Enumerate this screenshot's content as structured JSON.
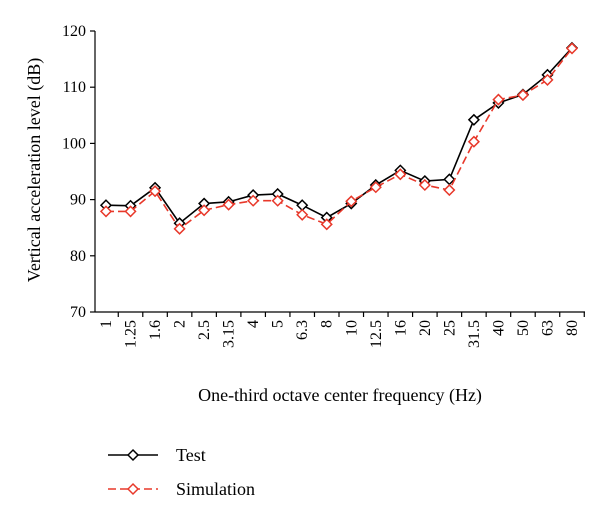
{
  "chart_data": {
    "type": "line",
    "title": "",
    "xlabel": "One-third octave center frequency (Hz)",
    "ylabel": "Vertical acceleration level (dB)",
    "ylim": [
      70,
      120
    ],
    "yticks": [
      "70",
      "80",
      "90",
      "100",
      "110",
      "120"
    ],
    "categories": [
      "1",
      "1.25",
      "1.6",
      "2",
      "2.5",
      "3.15",
      "4",
      "5",
      "6.3",
      "8",
      "10",
      "12.5",
      "16",
      "20",
      "25",
      "31.5",
      "40",
      "50",
      "63",
      "80"
    ],
    "series": [
      {
        "name": "Test",
        "color": "#000000",
        "marker": "diamond",
        "line_style": "solid",
        "values": [
          89.0,
          88.9,
          92.1,
          85.8,
          89.3,
          89.6,
          90.8,
          91.0,
          89.0,
          86.8,
          89.3,
          92.6,
          95.2,
          93.3,
          93.6,
          104.2,
          107.2,
          108.7,
          112.2,
          117.0
        ]
      },
      {
        "name": "Simulation",
        "color": "#e8382a",
        "marker": "diamond",
        "line_style": "dashed",
        "values": [
          87.9,
          87.9,
          91.5,
          84.8,
          88.1,
          89.1,
          89.8,
          89.8,
          87.3,
          85.6,
          89.7,
          92.2,
          94.5,
          92.6,
          91.7,
          100.3,
          107.8,
          108.6,
          111.3,
          116.9
        ]
      }
    ],
    "grid": false,
    "legend_position": "bottom-left"
  }
}
